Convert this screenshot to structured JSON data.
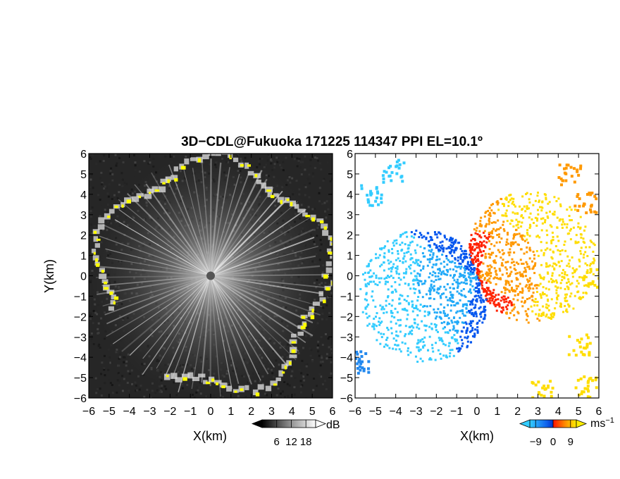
{
  "title": "3D−CDL@Fukuoka 171225 114347 PPI EL=10.1º",
  "chart_data": [
    {
      "type": "heatmap",
      "panel": "reflectivity",
      "xlabel": "X(km)",
      "ylabel": "Y(km)",
      "xlim": [
        -6,
        6
      ],
      "ylim": [
        -6,
        6
      ],
      "xticks": [
        "−6",
        "−5",
        "−4",
        "−3",
        "−2",
        "−1",
        "0",
        "1",
        "2",
        "3",
        "4",
        "5",
        "6"
      ],
      "yticks": [
        "−6",
        "−5",
        "−4",
        "−3",
        "−2",
        "−1",
        "0",
        "1",
        "2",
        "3",
        "4",
        "5",
        "6"
      ],
      "colorbar": {
        "unit": "dB",
        "ticks": [
          "6",
          "12",
          "18"
        ],
        "tick_values": [
          6,
          12,
          18
        ],
        "range": [
          0,
          22
        ]
      },
      "colors": {
        "background": "#222222",
        "rays": "#dcdcdc",
        "highlight": "#ffff00"
      }
    },
    {
      "type": "heatmap",
      "panel": "doppler_velocity",
      "xlabel": "X(km)",
      "xlim": [
        -6,
        6
      ],
      "ylim": [
        -6,
        6
      ],
      "xticks": [
        "−6",
        "−5",
        "−4",
        "−3",
        "−2",
        "−1",
        "0",
        "1",
        "2",
        "3",
        "4",
        "5",
        "6"
      ],
      "yticks": [
        "−6",
        "−5",
        "−4",
        "−3",
        "−2",
        "−1",
        "0",
        "1",
        "2",
        "3",
        "4",
        "5",
        "6"
      ],
      "colorbar": {
        "unit": "ms",
        "unit_exp": "−1",
        "ticks": [
          "−9",
          "0",
          "9"
        ],
        "tick_values": [
          -9,
          0,
          9
        ],
        "range": [
          -12,
          12
        ]
      },
      "colors": {
        "cyan": "#33ccff",
        "blue": "#0055ee",
        "red": "#ff2200",
        "orange": "#ff9900",
        "yellow": "#ffdd00"
      }
    }
  ]
}
